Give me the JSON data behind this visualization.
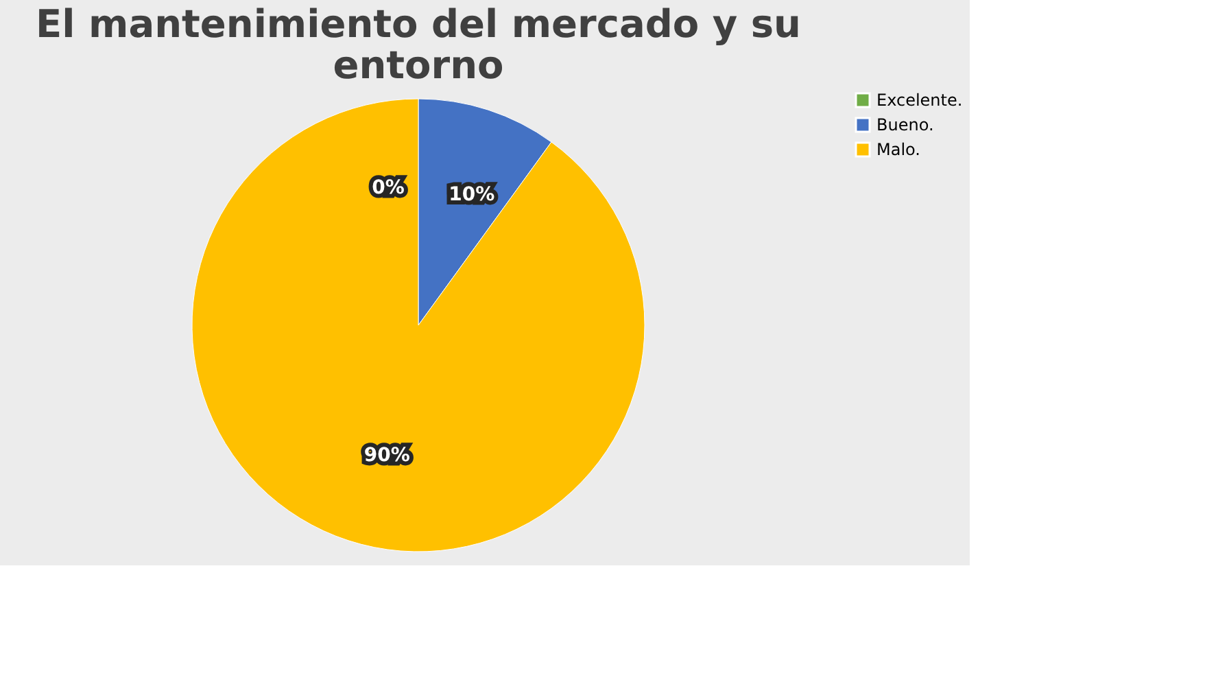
{
  "chart_data": {
    "type": "pie",
    "title": "El mantenimiento del mercado y su entorno",
    "categories": [
      "Excelente.",
      "Bueno.",
      "Malo."
    ],
    "values": [
      0,
      10,
      90
    ],
    "colors": [
      "#70ad47",
      "#4472c4",
      "#ffc000"
    ],
    "value_labels": [
      "0%",
      "10%",
      "90%"
    ],
    "legend": "right"
  }
}
